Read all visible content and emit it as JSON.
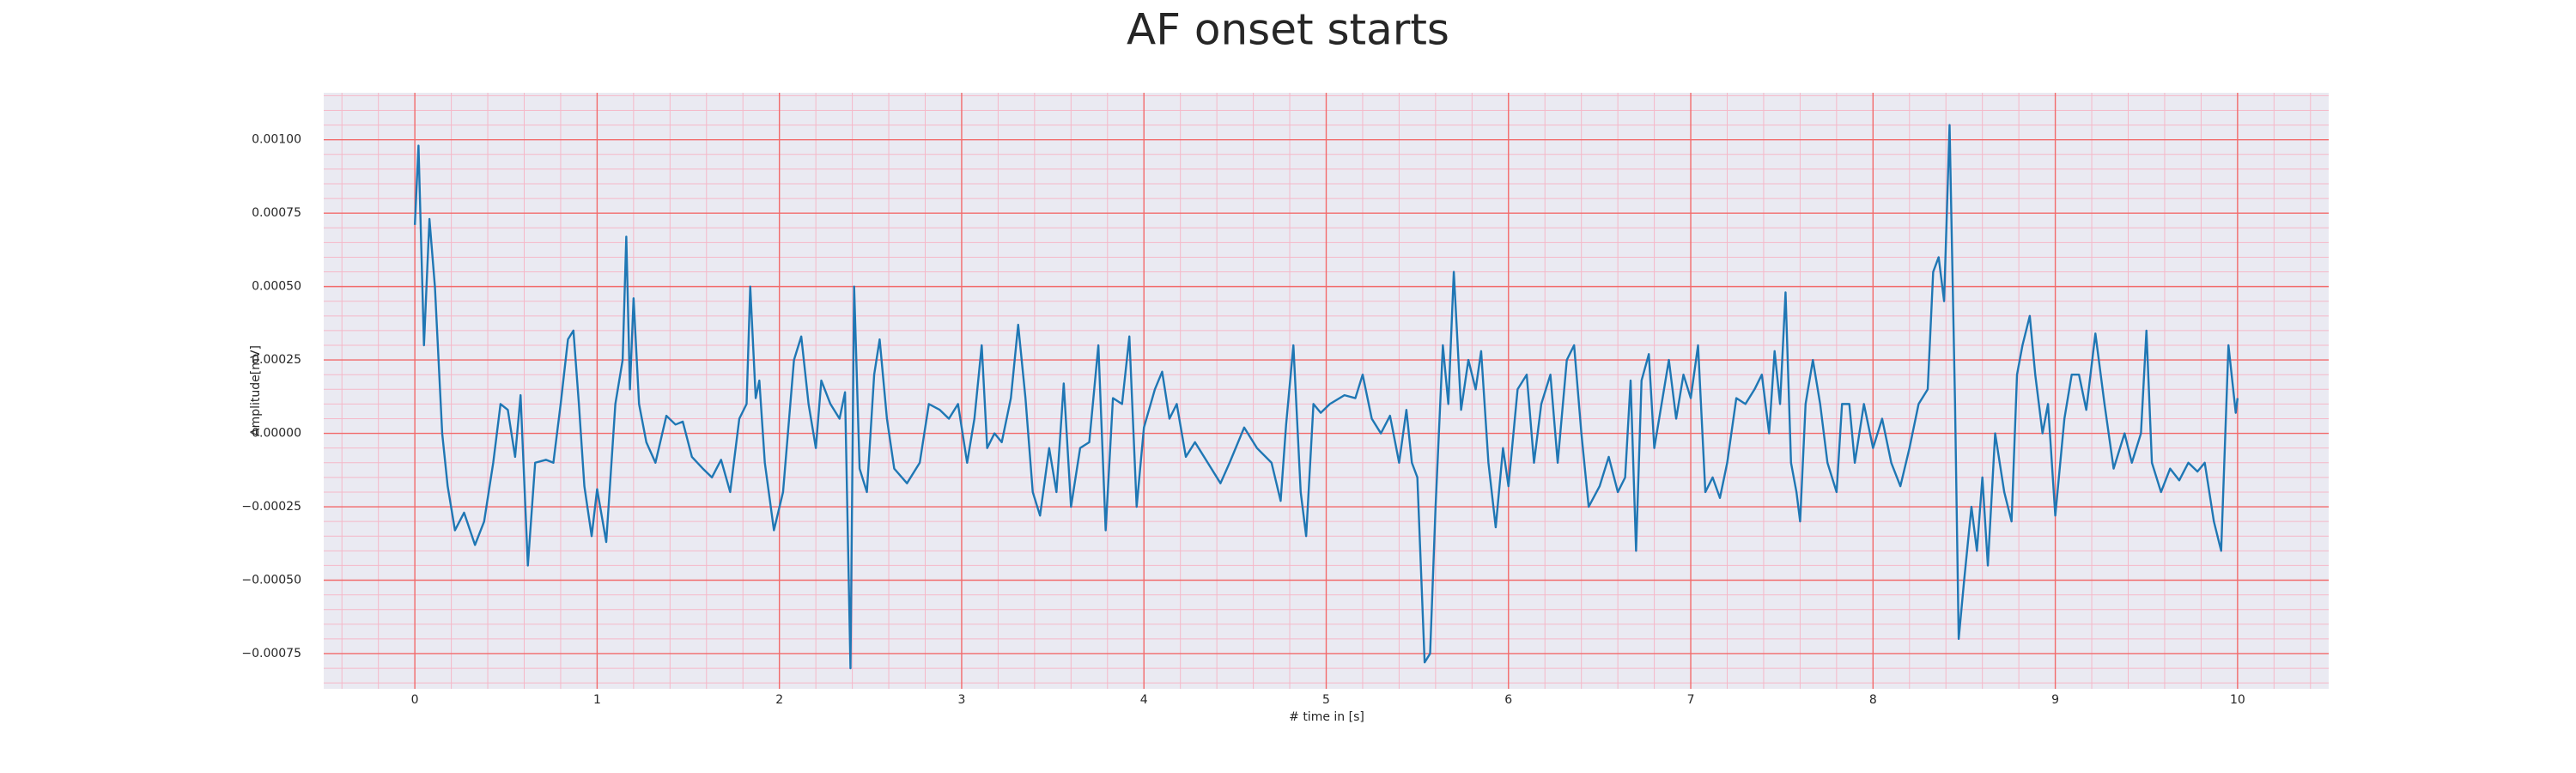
{
  "chart_data": {
    "type": "line",
    "title": "AF onset starts",
    "xlabel": "# time in [s]",
    "ylabel": "Amplitude[mV]",
    "color": "#1f77b4",
    "grid": true,
    "minor_grid": true,
    "xlim": [
      -0.5,
      10.5
    ],
    "ylim": [
      -0.00087,
      0.00116
    ],
    "xticks": [
      0,
      1,
      2,
      3,
      4,
      5,
      6,
      7,
      8,
      9,
      10
    ],
    "yticks": [
      {
        "value": -0.00075,
        "label": "−0.00075"
      },
      {
        "value": -0.0005,
        "label": "−0.00050"
      },
      {
        "value": -0.00025,
        "label": "−0.00025"
      },
      {
        "value": 0,
        "label": "0.00000"
      },
      {
        "value": 0.00025,
        "label": "0.00025"
      },
      {
        "value": 0.0005,
        "label": "0.00050"
      },
      {
        "value": 0.00075,
        "label": "0.00075"
      },
      {
        "value": 0.001,
        "label": "0.00100"
      }
    ],
    "x": [
      0,
      0.02,
      0.05,
      0.08,
      0.11,
      0.15,
      0.18,
      0.22,
      0.27,
      0.33,
      0.38,
      0.43,
      0.47,
      0.51,
      0.55,
      0.58,
      0.62,
      0.66,
      0.72,
      0.76,
      0.8,
      0.84,
      0.87,
      0.9,
      0.93,
      0.97,
      1.0,
      1.05,
      1.1,
      1.14,
      1.16,
      1.18,
      1.2,
      1.23,
      1.27,
      1.32,
      1.38,
      1.43,
      1.47,
      1.52,
      1.58,
      1.63,
      1.68,
      1.73,
      1.78,
      1.82,
      1.84,
      1.87,
      1.89,
      1.92,
      1.97,
      2.02,
      2.08,
      2.12,
      2.16,
      2.2,
      2.23,
      2.28,
      2.33,
      2.36,
      2.39,
      2.41,
      2.44,
      2.48,
      2.52,
      2.55,
      2.59,
      2.63,
      2.7,
      2.77,
      2.82,
      2.88,
      2.93,
      2.98,
      3.03,
      3.07,
      3.11,
      3.14,
      3.18,
      3.22,
      3.27,
      3.31,
      3.35,
      3.39,
      3.43,
      3.48,
      3.52,
      3.56,
      3.6,
      3.65,
      3.7,
      3.75,
      3.79,
      3.83,
      3.88,
      3.92,
      3.96,
      4.0,
      4.06,
      4.1,
      4.14,
      4.18,
      4.23,
      4.28,
      4.35,
      4.42,
      4.47,
      4.55,
      4.62,
      4.7,
      4.75,
      4.78,
      4.82,
      4.86,
      4.89,
      4.93,
      4.97,
      5.02,
      5.1,
      5.16,
      5.2,
      5.25,
      5.3,
      5.35,
      5.4,
      5.44,
      5.47,
      5.5,
      5.54,
      5.57,
      5.6,
      5.64,
      5.67,
      5.7,
      5.74,
      5.78,
      5.82,
      5.85,
      5.89,
      5.93,
      5.97,
      6.0,
      6.05,
      6.1,
      6.14,
      6.18,
      6.23,
      6.27,
      6.32,
      6.36,
      6.4,
      6.44,
      6.5,
      6.55,
      6.6,
      6.64,
      6.67,
      6.7,
      6.73,
      6.77,
      6.8,
      6.84,
      6.88,
      6.92,
      6.96,
      7.0,
      7.04,
      7.08,
      7.12,
      7.16,
      7.2,
      7.25,
      7.3,
      7.35,
      7.39,
      7.43,
      7.46,
      7.49,
      7.52,
      7.55,
      7.58,
      7.6,
      7.63,
      7.67,
      7.71,
      7.75,
      7.8,
      7.83,
      7.87,
      7.9,
      7.95,
      8.0,
      8.05,
      8.1,
      8.15,
      8.2,
      8.25,
      8.3,
      8.33,
      8.36,
      8.39,
      8.42,
      8.45,
      8.47,
      8.5,
      8.54,
      8.57,
      8.6,
      8.63,
      8.67,
      8.72,
      8.76,
      8.79,
      8.82,
      8.86,
      8.89,
      8.93,
      8.96,
      9.0,
      9.05,
      9.09,
      9.13,
      9.17,
      9.22,
      9.27,
      9.32,
      9.38,
      9.42,
      9.47,
      9.5,
      9.53,
      9.58,
      9.63,
      9.68,
      9.73,
      9.78,
      9.82,
      9.87,
      9.91,
      9.95,
      9.99,
      10.0
    ],
    "values": [
      0.00071,
      0.00098,
      0.0003,
      0.00073,
      0.0005,
      0.0,
      -0.00018,
      -0.00033,
      -0.00027,
      -0.00038,
      -0.0003,
      -0.0001,
      0.0001,
      8e-05,
      -8e-05,
      0.00013,
      -0.00045,
      -0.0001,
      -9e-05,
      -0.0001,
      0.0001,
      0.00032,
      0.00035,
      0.0001,
      -0.00018,
      -0.00035,
      -0.00019,
      -0.00037,
      0.0001,
      0.00025,
      0.00067,
      0.00015,
      0.00046,
      0.0001,
      -3e-05,
      -0.0001,
      6e-05,
      3e-05,
      4e-05,
      -8e-05,
      -0.00012,
      -0.00015,
      -9e-05,
      -0.0002,
      5e-05,
      0.0001,
      0.0005,
      0.00012,
      0.00018,
      -0.0001,
      -0.00033,
      -0.0002,
      0.00025,
      0.00033,
      0.0001,
      -5e-05,
      0.00018,
      0.0001,
      5e-05,
      0.00014,
      -0.0008,
      0.0005,
      -0.00012,
      -0.0002,
      0.0002,
      0.00032,
      5e-05,
      -0.00012,
      -0.00017,
      -0.0001,
      0.0001,
      8e-05,
      5e-05,
      0.0001,
      -0.0001,
      5e-05,
      0.0003,
      -5e-05,
      0.0,
      -3e-05,
      0.00012,
      0.00037,
      0.00012,
      -0.0002,
      -0.00028,
      -5e-05,
      -0.0002,
      0.00017,
      -0.00025,
      -5e-05,
      -3e-05,
      0.0003,
      -0.00033,
      0.00012,
      0.0001,
      0.00033,
      -0.00025,
      2e-05,
      0.00015,
      0.00021,
      5e-05,
      0.0001,
      -8e-05,
      -3e-05,
      -0.0001,
      -0.00017,
      -0.0001,
      2e-05,
      -5e-05,
      -0.0001,
      -0.00023,
      3e-05,
      0.0003,
      -0.0002,
      -0.00035,
      0.0001,
      7e-05,
      0.0001,
      0.00013,
      0.00012,
      0.0002,
      5e-05,
      0.0,
      6e-05,
      -0.0001,
      8e-05,
      -0.0001,
      -0.00015,
      -0.00078,
      -0.00075,
      -0.00025,
      0.0003,
      0.0001,
      0.00055,
      8e-05,
      0.00025,
      0.00015,
      0.00028,
      -0.0001,
      -0.00032,
      -5e-05,
      -0.00018,
      0.00015,
      0.0002,
      -0.0001,
      0.0001,
      0.0002,
      -0.0001,
      0.00025,
      0.0003,
      0.0,
      -0.00025,
      -0.00018,
      -8e-05,
      -0.0002,
      -0.00015,
      0.00018,
      -0.0004,
      0.00018,
      0.00027,
      -5e-05,
      0.0001,
      0.00025,
      5e-05,
      0.0002,
      0.00012,
      0.0003,
      -0.0002,
      -0.00015,
      -0.00022,
      -0.0001,
      0.00012,
      0.0001,
      0.00015,
      0.0002,
      0.0,
      0.00028,
      0.0001,
      0.00048,
      -0.0001,
      -0.0002,
      -0.0003,
      0.0001,
      0.00025,
      0.0001,
      -0.0001,
      -0.0002,
      0.0001,
      0.0001,
      -0.0001,
      0.0001,
      -5e-05,
      5e-05,
      -0.0001,
      -0.00018,
      -5e-05,
      0.0001,
      0.00015,
      0.00055,
      0.0006,
      0.00045,
      0.00105,
      0.0001,
      -0.0007,
      -0.0005,
      -0.00025,
      -0.0004,
      -0.00015,
      -0.00045,
      0.0,
      -0.0002,
      -0.0003,
      0.0002,
      0.0003,
      0.0004,
      0.0002,
      0.0,
      0.0001,
      -0.00028,
      5e-05,
      0.0002,
      0.0002,
      8e-05,
      0.00034,
      0.0001,
      -0.00012,
      0.0,
      -0.0001,
      0.0,
      0.00035,
      -0.0001,
      -0.0002,
      -0.00012,
      -0.00016,
      -0.0001,
      -0.00013,
      -0.0001,
      -0.0003,
      -0.0004,
      0.0003,
      7e-05,
      0.00012
    ]
  }
}
